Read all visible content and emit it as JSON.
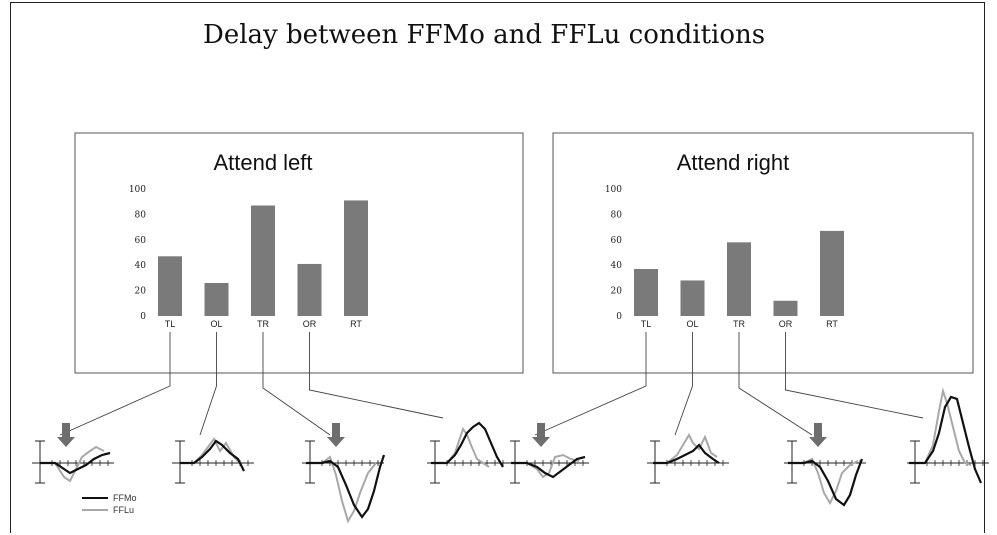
{
  "page_title": "Delay between FFMo and FFLu conditions",
  "colors": {
    "bar": "#7a7a7a",
    "ffmo": "#111111",
    "fflu": "#a8a8a8",
    "frame": "#555555"
  },
  "legend": {
    "items": [
      {
        "label": "FFMo"
      },
      {
        "label": "FFLu"
      }
    ]
  },
  "chart_data": [
    {
      "type": "bar",
      "title": "Attend left",
      "categories": [
        "TL",
        "OL",
        "TR",
        "OR",
        "RT"
      ],
      "values": [
        47,
        26,
        87,
        41,
        91
      ],
      "ylim": [
        0,
        100
      ],
      "yticks": [
        0,
        20,
        40,
        60,
        80,
        100
      ],
      "xlabel": "",
      "ylabel": ""
    },
    {
      "type": "bar",
      "title": "Attend right",
      "categories": [
        "TL",
        "OL",
        "TR",
        "OR",
        "RT"
      ],
      "values": [
        37,
        28,
        58,
        12,
        67
      ],
      "ylim": [
        0,
        100
      ],
      "yticks": [
        0,
        20,
        40,
        60,
        80,
        100
      ],
      "xlabel": "",
      "ylabel": ""
    }
  ]
}
